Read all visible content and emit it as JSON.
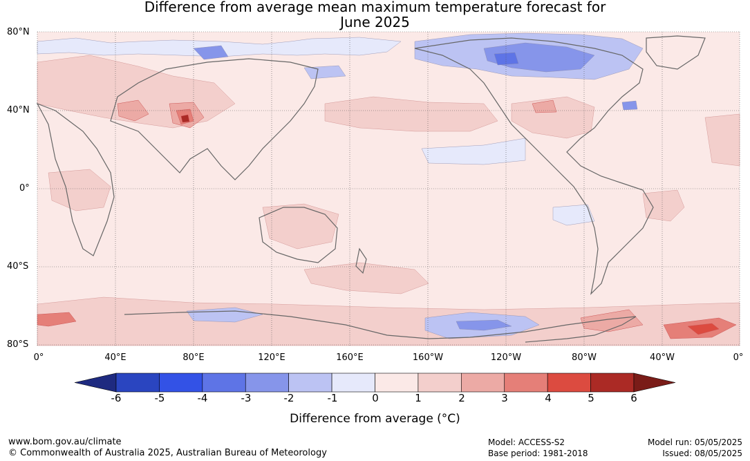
{
  "title": {
    "line1": "Difference from average mean maximum temperature forecast for",
    "line2": "June 2025"
  },
  "map": {
    "lat_labels": [
      "80°N",
      "40°N",
      "0°",
      "40°S",
      "80°S"
    ],
    "lon_labels": [
      "0°",
      "40°E",
      "80°E",
      "120°E",
      "160°E",
      "160°W",
      "120°W",
      "80°W",
      "40°W",
      "0°"
    ],
    "land_color": "#fbe9e7",
    "gridline_color": "#555555"
  },
  "colorbar": {
    "ticks": [
      "-6",
      "-5",
      "-4",
      "-3",
      "-2",
      "-1",
      "0",
      "1",
      "2",
      "3",
      "4",
      "5",
      "6"
    ],
    "colors": [
      "#1e2a80",
      "#2a45c0",
      "#3352e6",
      "#5e74e6",
      "#8695ea",
      "#bcc3f3",
      "#e6e9fb",
      "#fbe9e7",
      "#f3cfcc",
      "#ecaaa5",
      "#e57f78",
      "#dc4b40",
      "#ab2a25",
      "#7a1c18"
    ],
    "label": "Difference from average (°C)"
  },
  "footer": {
    "url": "www.bom.gov.au/climate",
    "copyright": "© Commonwealth of Australia 2025, Australian Bureau of Meteorology",
    "model": "Model: ACCESS-S2",
    "base_period": "Base period: 1981-2018",
    "model_run": "Model run: 05/05/2025",
    "issued": "Issued: 08/05/2025"
  }
}
